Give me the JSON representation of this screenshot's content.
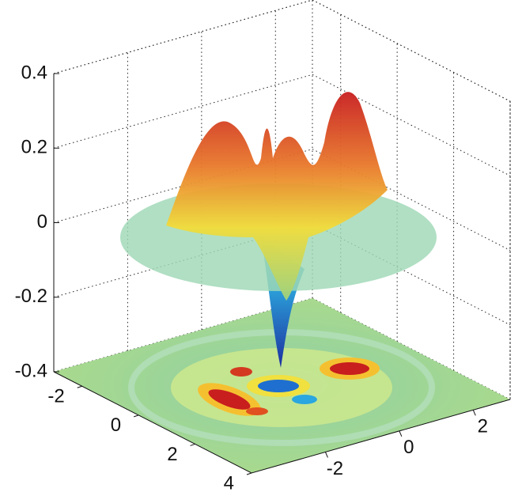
{
  "chart_data": {
    "type": "surface3d",
    "xlim": [
      -3,
      4
    ],
    "xticks": [
      -2,
      0,
      2,
      4
    ],
    "ylim": [
      -4,
      3
    ],
    "yticks": [
      -2,
      0,
      2
    ],
    "zlim": [
      -0.4,
      0.4
    ],
    "zticks": [
      -0.4,
      -0.2,
      0,
      0.2,
      0.4
    ],
    "grid": true
  }
}
